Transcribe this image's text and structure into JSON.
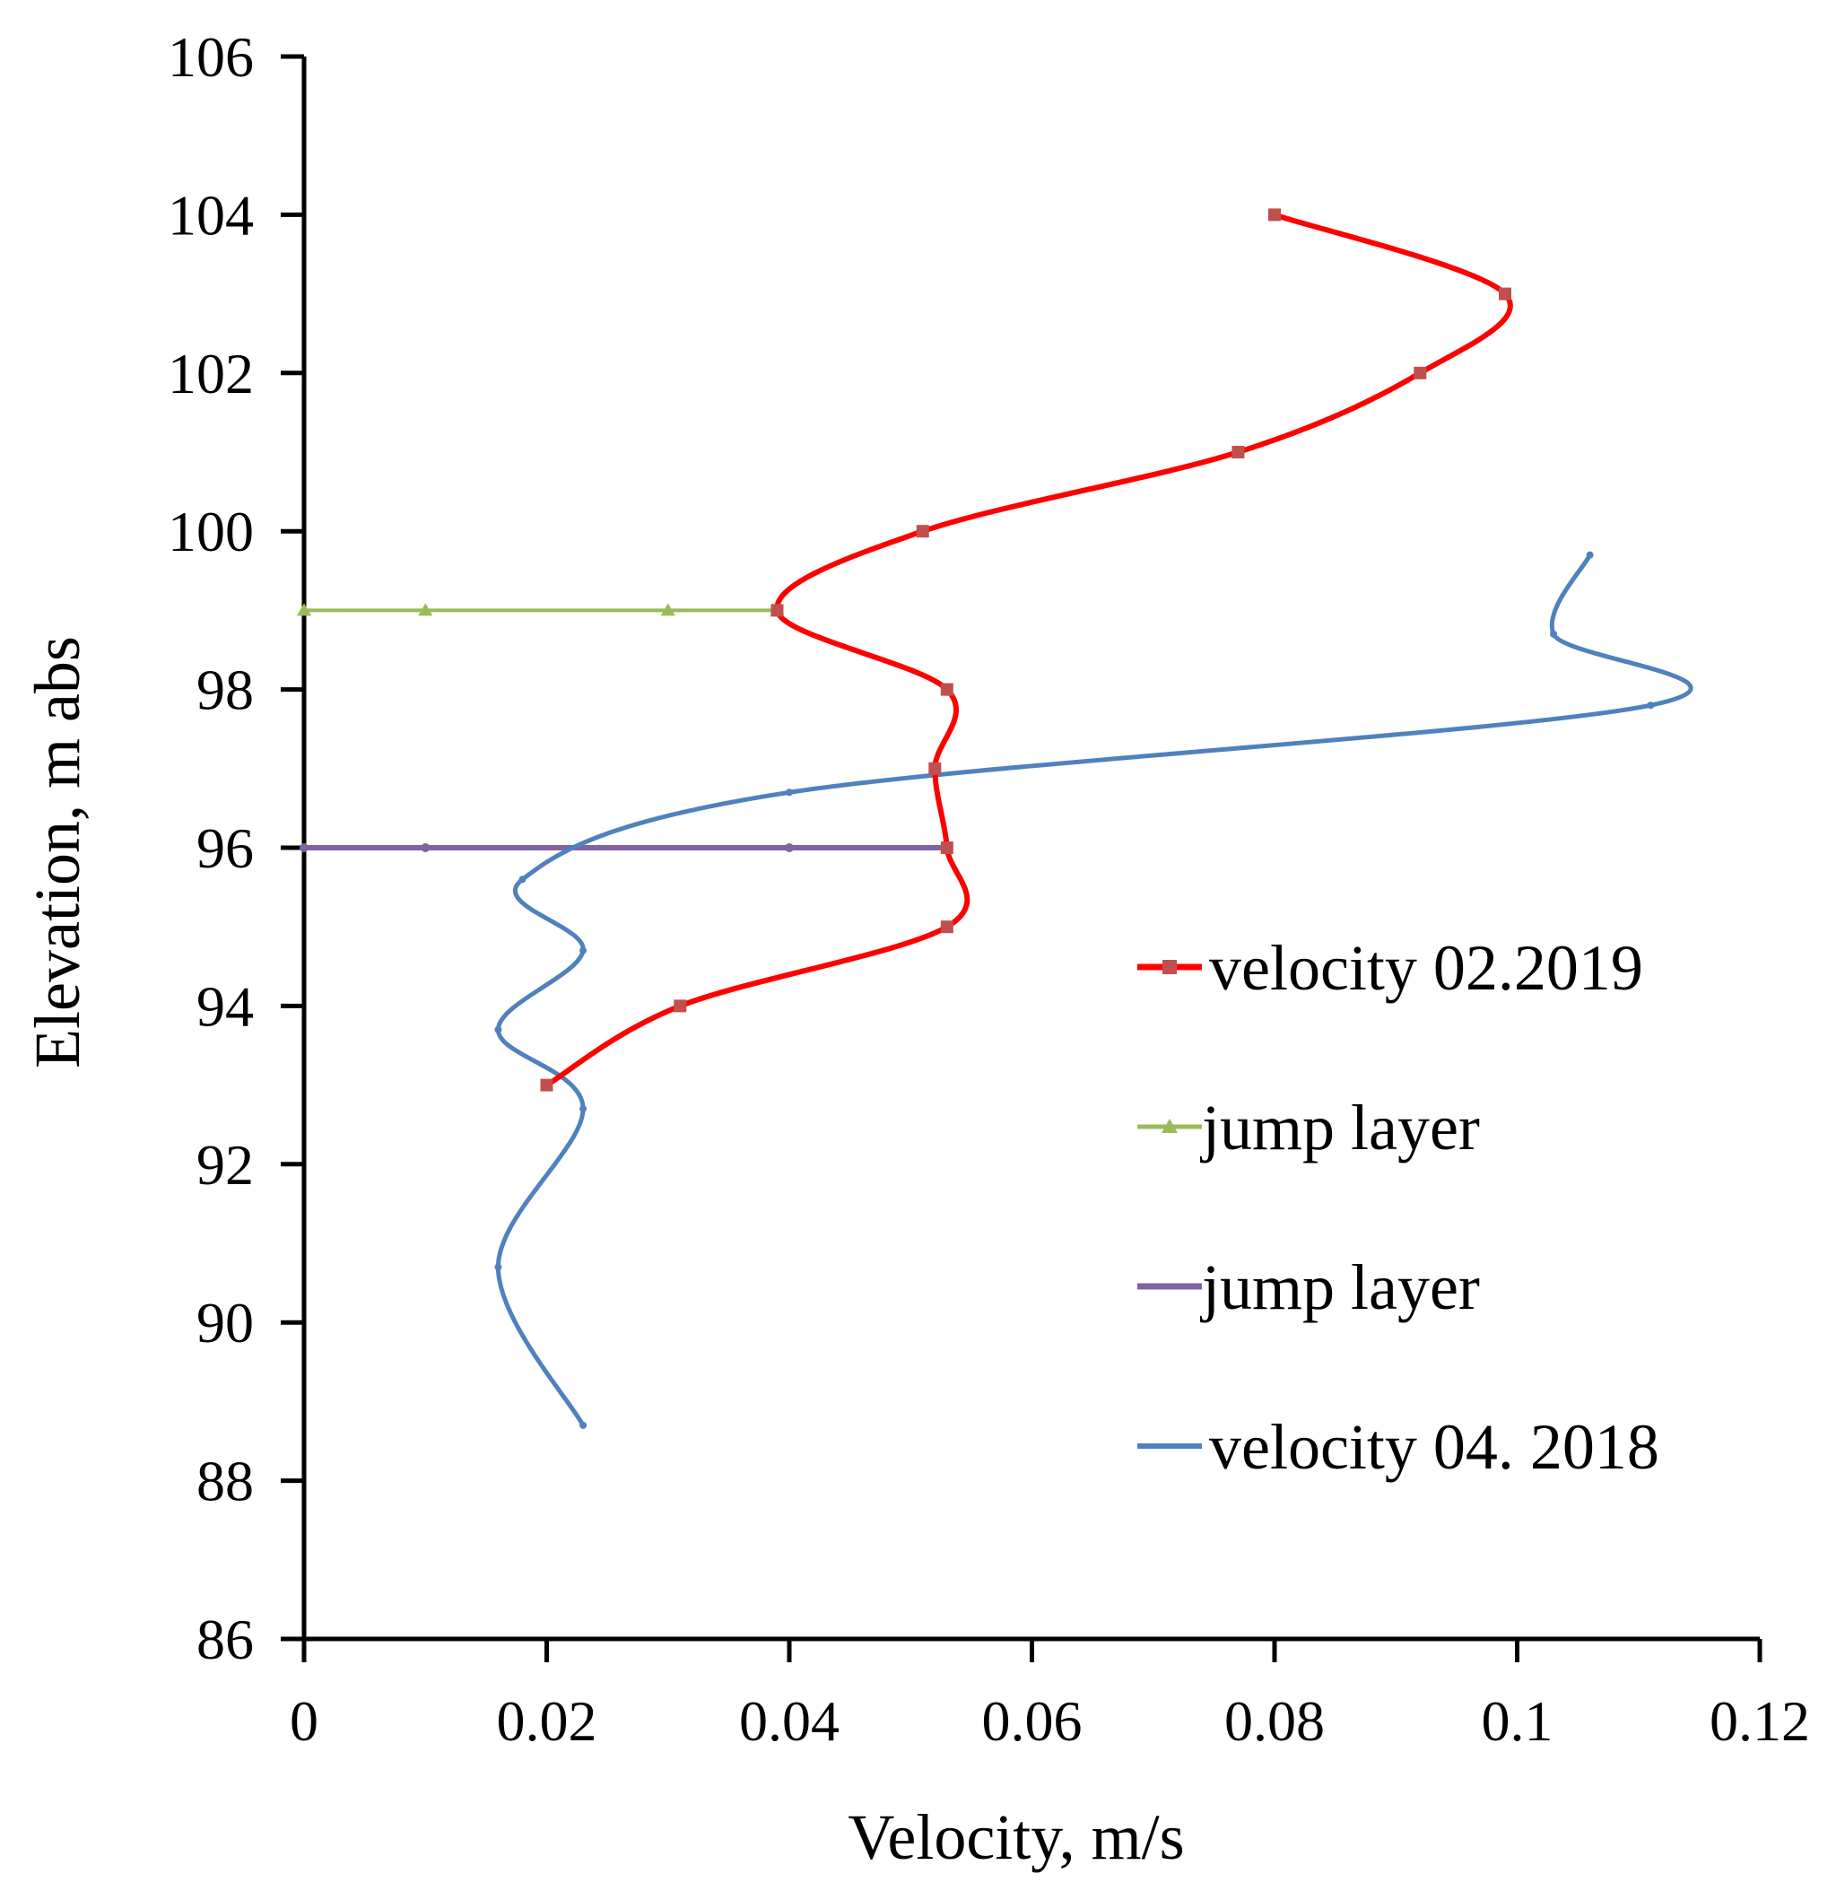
{
  "chart_data": {
    "type": "line",
    "title": "",
    "xlabel": "Velocity, m/s",
    "ylabel": "Elevation, m abs",
    "xlim": [
      0,
      0.12
    ],
    "ylim": [
      86,
      106
    ],
    "x_ticks": [
      "0",
      "0.02",
      "0.04",
      "0.06",
      "0.08",
      "0.1",
      "0.12"
    ],
    "y_ticks": [
      "86",
      "88",
      "90",
      "92",
      "94",
      "96",
      "98",
      "100",
      "102",
      "104",
      "106"
    ],
    "grid": false,
    "legend_position": "right",
    "series": [
      {
        "name": "velocity 02.2019",
        "color": "#ff0000",
        "marker": "square",
        "smooth": true,
        "points": [
          {
            "x": 0.08,
            "y": 104
          },
          {
            "x": 0.099,
            "y": 103
          },
          {
            "x": 0.092,
            "y": 102
          },
          {
            "x": 0.077,
            "y": 101
          },
          {
            "x": 0.051,
            "y": 100
          },
          {
            "x": 0.039,
            "y": 99
          },
          {
            "x": 0.053,
            "y": 98
          },
          {
            "x": 0.052,
            "y": 97
          },
          {
            "x": 0.053,
            "y": 96
          },
          {
            "x": 0.053,
            "y": 95
          },
          {
            "x": 0.031,
            "y": 94
          },
          {
            "x": 0.02,
            "y": 93
          }
        ]
      },
      {
        "name": "jump layer",
        "color": "#9bbb59",
        "marker": "triangle",
        "smooth": false,
        "points": [
          {
            "x": 0.0,
            "y": 99
          },
          {
            "x": 0.01,
            "y": 99
          },
          {
            "x": 0.03,
            "y": 99
          },
          {
            "x": 0.039,
            "y": 99
          }
        ]
      },
      {
        "name": "jump layer",
        "color": "#8064a2",
        "marker": "cross",
        "smooth": false,
        "points": [
          {
            "x": 0.0,
            "y": 96
          },
          {
            "x": 0.01,
            "y": 96
          },
          {
            "x": 0.04,
            "y": 96
          },
          {
            "x": 0.053,
            "y": 96
          }
        ]
      },
      {
        "name": "velocity 04. 2018",
        "color": "#4f81bd",
        "marker": "dash",
        "smooth": true,
        "points": [
          {
            "x": 0.106,
            "y": 99.7
          },
          {
            "x": 0.103,
            "y": 98.7
          },
          {
            "x": 0.111,
            "y": 97.8
          },
          {
            "x": 0.04,
            "y": 96.7
          },
          {
            "x": 0.018,
            "y": 95.6
          },
          {
            "x": 0.023,
            "y": 94.7
          },
          {
            "x": 0.016,
            "y": 93.7
          },
          {
            "x": 0.023,
            "y": 92.7
          },
          {
            "x": 0.016,
            "y": 90.7
          },
          {
            "x": 0.023,
            "y": 88.7
          }
        ]
      }
    ]
  }
}
